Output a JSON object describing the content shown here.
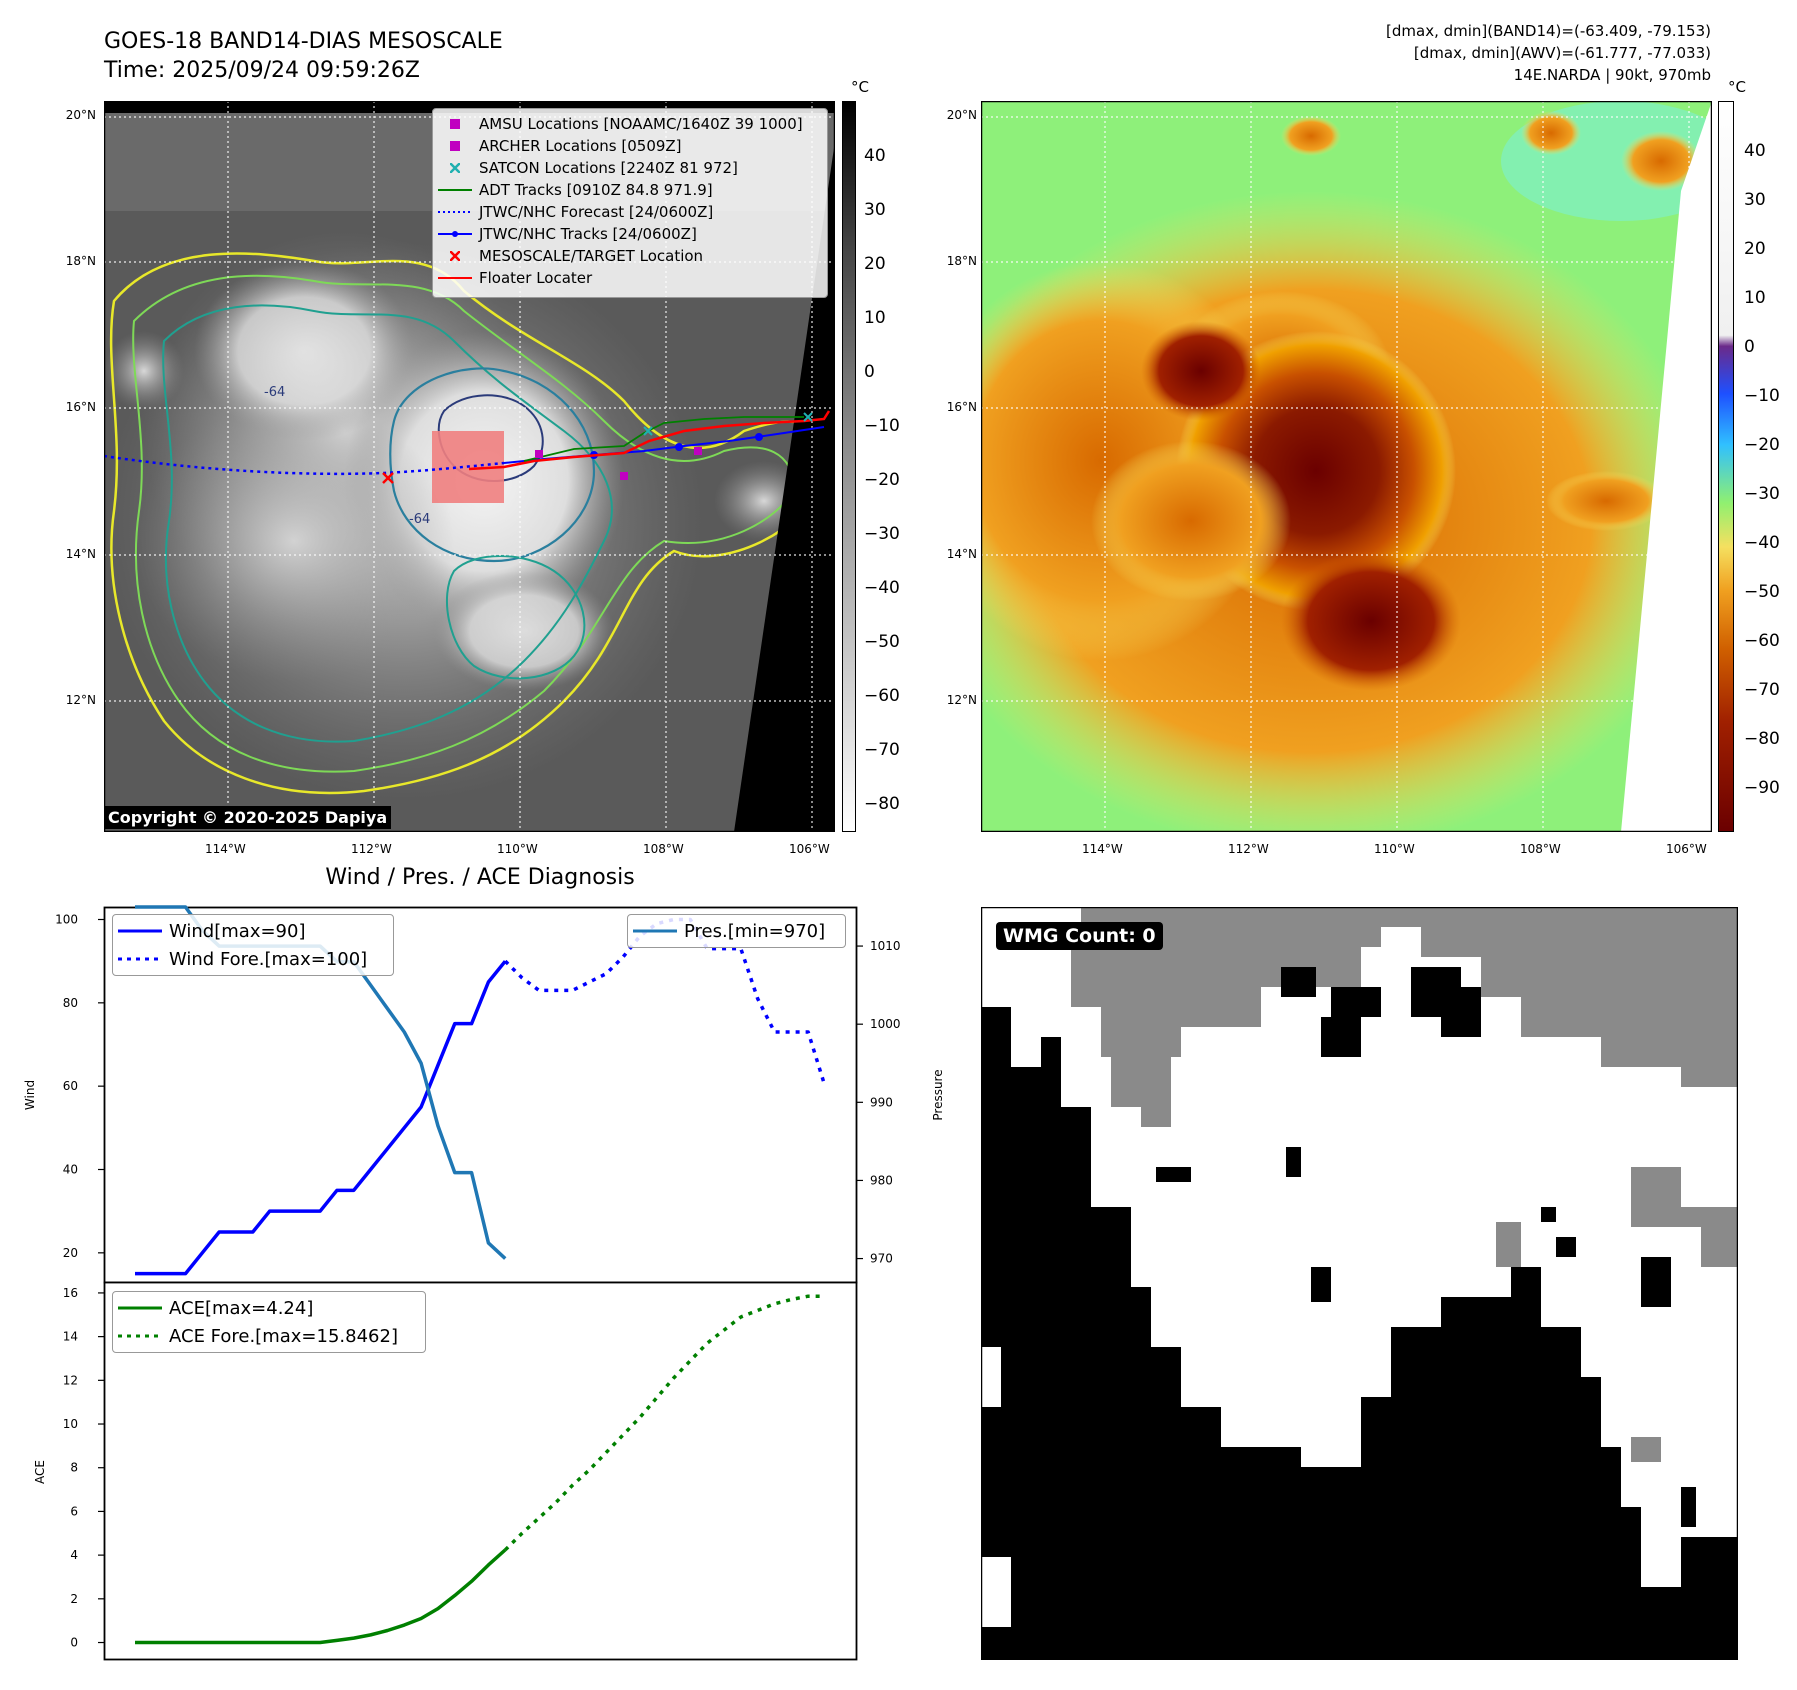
{
  "top_left": {
    "title_line1": "GOES-18 BAND14-DIAS MESOSCALE",
    "title_line2": "Time: 2025/09/24 09:59:26Z",
    "colorbar_unit": "°C",
    "colorbar_ticks": [
      "40",
      "30",
      "20",
      "10",
      "0",
      "−10",
      "−20",
      "−30",
      "−40",
      "−50",
      "−60",
      "−70",
      "−80"
    ],
    "lat_labels": [
      "20°N",
      "18°N",
      "16°N",
      "14°N",
      "12°N"
    ],
    "lon_labels": [
      "114°W",
      "112°W",
      "110°W",
      "108°W",
      "106°W"
    ],
    "copyright": "Copyright © 2020-2025 Dapiya",
    "legend": [
      {
        "label": "AMSU Locations [NOAAMC/1640Z 39 1000]",
        "symbol": "square",
        "color": "#c000c0"
      },
      {
        "label": "ARCHER Locations [0509Z]",
        "symbol": "square",
        "color": "#c000c0"
      },
      {
        "label": "SATCON Locations [2240Z 81 972]",
        "symbol": "x",
        "color": "#20b0b0"
      },
      {
        "label": "ADT Tracks [0910Z 84.8 971.9]",
        "symbol": "line",
        "color": "#008000"
      },
      {
        "label": "JTWC/NHC Forecast [24/0600Z]",
        "symbol": "dotted",
        "color": "#0000ff"
      },
      {
        "label": "JTWC/NHC Tracks [24/0600Z]",
        "symbol": "line-dot",
        "color": "#0000ff"
      },
      {
        "label": "MESOSCALE/TARGET Location",
        "symbol": "x",
        "color": "#ff0000"
      },
      {
        "label": "Floater Locater",
        "symbol": "line",
        "color": "#ff0000"
      }
    ],
    "contour_labels": [
      "-64",
      "-64"
    ]
  },
  "top_right": {
    "info_line1": "[dmax, dmin](BAND14)=(-63.409, -79.153)",
    "info_line2": "[dmax, dmin](AWV)=(-61.777, -77.033)",
    "info_line3": "14E.NARDA | 90kt, 970mb",
    "colorbar_unit": "°C",
    "colorbar_ticks": [
      "40",
      "30",
      "20",
      "10",
      "0",
      "−10",
      "−20",
      "−30",
      "−40",
      "−50",
      "−60",
      "−70",
      "−80",
      "−90"
    ],
    "lat_labels": [
      "20°N",
      "18°N",
      "16°N",
      "14°N",
      "12°N"
    ],
    "lon_labels": [
      "114°W",
      "112°W",
      "110°W",
      "108°W",
      "106°W"
    ]
  },
  "bottom_left": {
    "title": "Wind / Pres. / ACE Diagnosis",
    "colors": {
      "wind": "#0000ff",
      "pres": "#1f77b4",
      "ace": "#008000"
    }
  },
  "bottom_right": {
    "label": "WMG Count: 0"
  },
  "chart_data": [
    {
      "type": "line",
      "title": "Wind / Pres. / ACE Diagnosis",
      "ylabel": "Wind",
      "y2label": "Pressure",
      "ylim": [
        13,
        103
      ],
      "y2lim": [
        967,
        1015
      ],
      "yticks": [
        20,
        40,
        60,
        80,
        100
      ],
      "y2ticks": [
        970,
        980,
        990,
        1000,
        1010
      ],
      "series": [
        {
          "name": "Wind[max=90]",
          "axis": "left",
          "style": "solid",
          "x": [
            0,
            1,
            2,
            3,
            4,
            5,
            6,
            7,
            8,
            9,
            10,
            11,
            12,
            13,
            14,
            15,
            16,
            17,
            18,
            19,
            20,
            21,
            22
          ],
          "values": [
            15,
            15,
            15,
            15,
            20,
            25,
            25,
            25,
            30,
            30,
            30,
            30,
            35,
            35,
            40,
            45,
            50,
            55,
            65,
            75,
            75,
            85,
            90
          ]
        },
        {
          "name": "Wind Fore.[max=100]",
          "axis": "left",
          "style": "dotted",
          "x": [
            22,
            23,
            24,
            25,
            26,
            27,
            28,
            29,
            30,
            31,
            32,
            33,
            34,
            35,
            36,
            37,
            38,
            39,
            40,
            41
          ],
          "values": [
            90,
            86,
            83,
            83,
            83,
            85,
            87,
            91,
            96,
            99,
            100,
            100,
            93,
            93,
            93,
            81,
            73,
            73,
            73,
            60
          ]
        },
        {
          "name": "Pres.[min=970]",
          "axis": "right",
          "style": "solid",
          "x": [
            0,
            1,
            2,
            3,
            4,
            5,
            6,
            7,
            8,
            9,
            10,
            11,
            12,
            13,
            14,
            15,
            16,
            17,
            18,
            19,
            20,
            21,
            22
          ],
          "values": [
            1015,
            1015,
            1015,
            1015,
            1012,
            1010,
            1010,
            1010,
            1010,
            1010,
            1010,
            1010,
            1008,
            1008,
            1005,
            1002,
            999,
            995,
            987,
            981,
            981,
            972,
            970
          ]
        }
      ]
    },
    {
      "type": "line",
      "ylabel": "ACE",
      "ylim": [
        -0.8,
        16.5
      ],
      "yticks": [
        0,
        2,
        4,
        6,
        8,
        10,
        12,
        14,
        16
      ],
      "series": [
        {
          "name": "ACE[max=4.24]",
          "style": "solid",
          "x": [
            0,
            1,
            2,
            3,
            4,
            5,
            6,
            7,
            8,
            9,
            10,
            11,
            12,
            13,
            14,
            15,
            16,
            17,
            18,
            19,
            20,
            21,
            22
          ],
          "values": [
            0,
            0,
            0,
            0,
            0,
            0,
            0,
            0,
            0,
            0,
            0,
            0,
            0.1,
            0.2,
            0.35,
            0.55,
            0.8,
            1.1,
            1.55,
            2.15,
            2.8,
            3.55,
            4.24
          ]
        },
        {
          "name": "ACE Fore.[max=15.8462]",
          "style": "dotted",
          "x": [
            22,
            23,
            24,
            25,
            26,
            27,
            28,
            29,
            30,
            31,
            32,
            33,
            34,
            35,
            36,
            37,
            38,
            39,
            40,
            41
          ],
          "values": [
            4.24,
            5.0,
            5.7,
            6.4,
            7.2,
            7.9,
            8.7,
            9.5,
            10.3,
            11.2,
            12.1,
            12.9,
            13.7,
            14.3,
            14.9,
            15.2,
            15.5,
            15.7,
            15.85,
            15.85
          ]
        }
      ]
    }
  ]
}
